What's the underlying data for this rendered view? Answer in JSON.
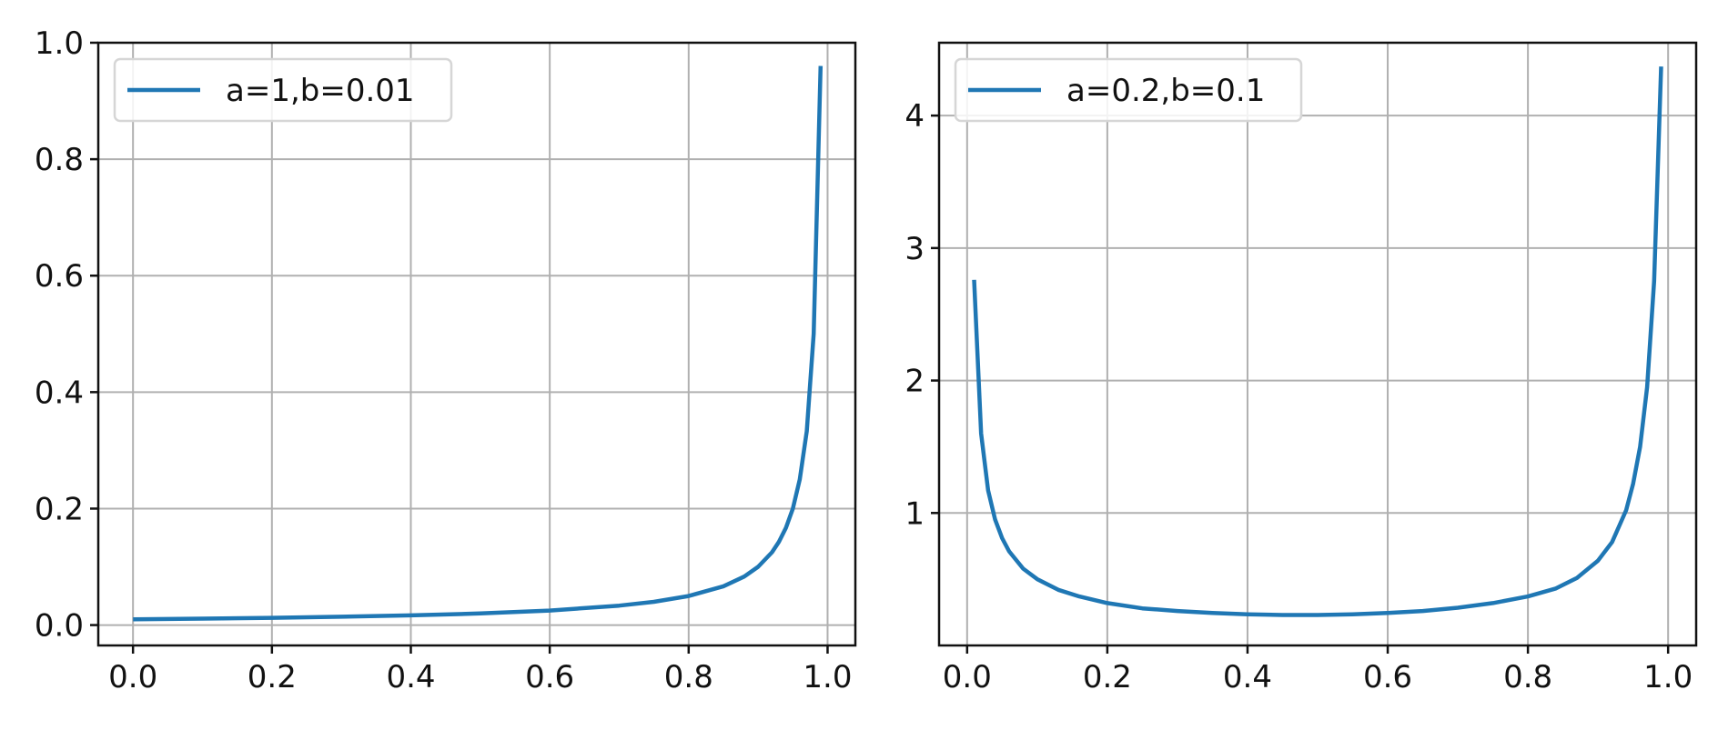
{
  "chart_data": [
    {
      "type": "line",
      "title": "",
      "xlabel": "",
      "ylabel": "",
      "xlim": [
        -0.05,
        1.04
      ],
      "ylim": [
        -0.035,
        1.0
      ],
      "xticks": [
        0.0,
        0.2,
        0.4,
        0.6,
        0.8,
        1.0
      ],
      "xtick_labels": [
        "0.0",
        "0.2",
        "0.4",
        "0.6",
        "0.8",
        "1.0"
      ],
      "yticks": [
        0.0,
        0.2,
        0.4,
        0.6,
        0.8,
        1.0
      ],
      "ytick_labels": [
        "0.0",
        "0.2",
        "0.4",
        "0.6",
        "0.8",
        "1.0"
      ],
      "grid": true,
      "legend_position": "upper-left",
      "series": [
        {
          "name": "a=1,b=0.01",
          "color": "#1f77b4",
          "x": [
            0.0,
            0.1,
            0.2,
            0.3,
            0.4,
            0.5,
            0.6,
            0.7,
            0.75,
            0.8,
            0.85,
            0.88,
            0.9,
            0.92,
            0.93,
            0.94,
            0.95,
            0.96,
            0.97,
            0.98,
            0.99
          ],
          "y": [
            0.01,
            0.011,
            0.0125,
            0.0143,
            0.0167,
            0.02,
            0.025,
            0.0333,
            0.04,
            0.05,
            0.0667,
            0.0833,
            0.1,
            0.125,
            0.143,
            0.167,
            0.2,
            0.25,
            0.333,
            0.5,
            0.96
          ]
        }
      ]
    },
    {
      "type": "line",
      "title": "",
      "xlabel": "",
      "ylabel": "",
      "xlim": [
        -0.04,
        1.04
      ],
      "ylim": [
        0.0,
        4.55
      ],
      "xticks": [
        0.0,
        0.2,
        0.4,
        0.6,
        0.8,
        1.0
      ],
      "xtick_labels": [
        "0.0",
        "0.2",
        "0.4",
        "0.6",
        "0.8",
        "1.0"
      ],
      "yticks": [
        1,
        2,
        3,
        4
      ],
      "ytick_labels": [
        "1",
        "2",
        "3",
        "4"
      ],
      "grid": true,
      "legend_position": "upper-left",
      "series": [
        {
          "name": "a=0.2,b=0.1",
          "color": "#1f77b4",
          "x": [
            0.01,
            0.02,
            0.03,
            0.04,
            0.05,
            0.06,
            0.08,
            0.1,
            0.13,
            0.16,
            0.2,
            0.25,
            0.3,
            0.35,
            0.4,
            0.45,
            0.5,
            0.55,
            0.6,
            0.65,
            0.7,
            0.75,
            0.8,
            0.84,
            0.87,
            0.9,
            0.92,
            0.94,
            0.95,
            0.96,
            0.97,
            0.98,
            0.99
          ],
          "y": [
            2.76,
            1.6,
            1.17,
            0.95,
            0.81,
            0.71,
            0.58,
            0.5,
            0.42,
            0.37,
            0.32,
            0.28,
            0.26,
            0.245,
            0.235,
            0.23,
            0.23,
            0.235,
            0.245,
            0.26,
            0.285,
            0.32,
            0.37,
            0.43,
            0.51,
            0.64,
            0.78,
            1.02,
            1.22,
            1.5,
            1.95,
            2.75,
            4.37
          ]
        }
      ]
    }
  ]
}
